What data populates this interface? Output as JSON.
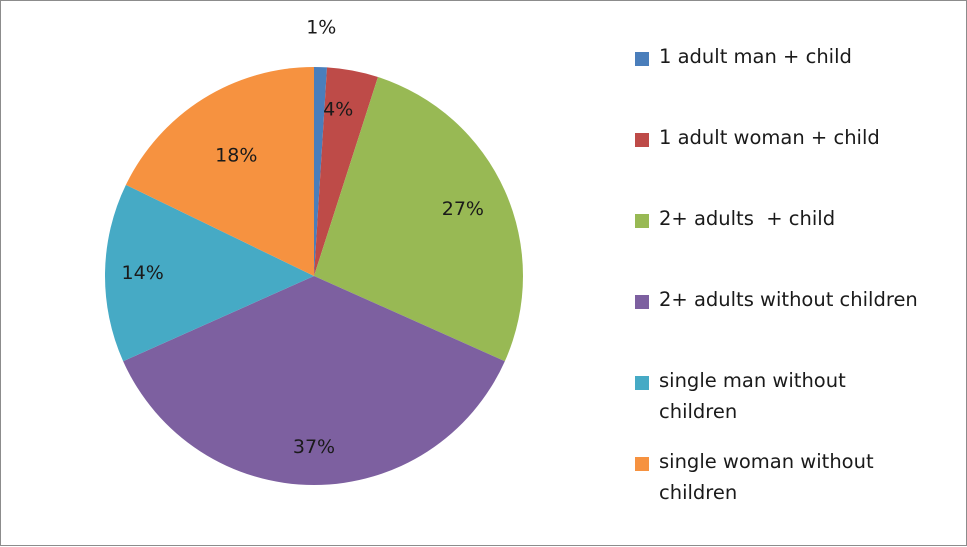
{
  "chart_data": {
    "type": "pie",
    "categories": [
      "1 adult man + child",
      "1 adult woman + child",
      "2+ adults  + child",
      "2+ adults without children",
      "single man without children",
      "single woman without children"
    ],
    "values": [
      1,
      4,
      27,
      37,
      14,
      18
    ],
    "data_labels": [
      "1%",
      "4%",
      "27%",
      "37%",
      "14%",
      "18%"
    ],
    "colors": [
      "#4a7ebb",
      "#be4b48",
      "#98b954",
      "#7d60a0",
      "#46aac5",
      "#f69240"
    ],
    "legend": {
      "placement": "right",
      "entries": [
        {
          "label": "1 adult man + child",
          "color": "#4a7ebb"
        },
        {
          "label": "1 adult woman + child",
          "color": "#be4b48"
        },
        {
          "label": "2+ adults  + child",
          "color": "#98b954"
        },
        {
          "label": "2+ adults without children",
          "color": "#7d60a0"
        },
        {
          "label": "single man without\nchildren",
          "color": "#46aac5"
        },
        {
          "label": "single woman without\nchildren",
          "color": "#f69240"
        }
      ]
    }
  }
}
